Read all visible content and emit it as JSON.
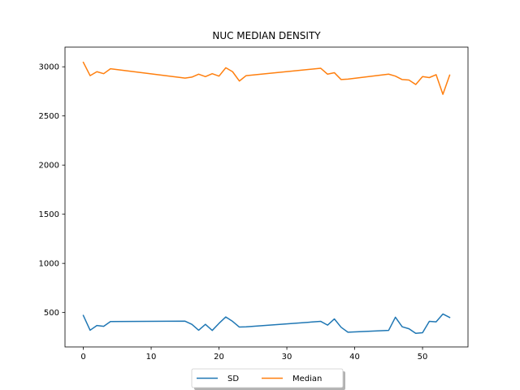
{
  "chart_data": {
    "type": "line",
    "title": "NUC MEDIAN DENSITY",
    "xlabel": "",
    "ylabel": "",
    "xlim": [
      -2.7,
      56.7
    ],
    "ylim": [
      150,
      3200
    ],
    "x_ticks": [
      0,
      10,
      20,
      30,
      40,
      50
    ],
    "y_ticks": [
      500,
      1000,
      1500,
      2000,
      2500,
      3000
    ],
    "grid": false,
    "legend_position": "bottom-center",
    "series": [
      {
        "name": "SD",
        "color": "#1f77b4",
        "points": [
          [
            0,
            470
          ],
          [
            1,
            320
          ],
          [
            2,
            368
          ],
          [
            3,
            360
          ],
          [
            4,
            408
          ],
          [
            15,
            412
          ],
          [
            16,
            380
          ],
          [
            17,
            320
          ],
          [
            18,
            380
          ],
          [
            19,
            318
          ],
          [
            20,
            390
          ],
          [
            21,
            455
          ],
          [
            22,
            410
          ],
          [
            23,
            352
          ],
          [
            24,
            355
          ],
          [
            35,
            410
          ],
          [
            36,
            372
          ],
          [
            37,
            435
          ],
          [
            38,
            350
          ],
          [
            39,
            300
          ],
          [
            45,
            318
          ],
          [
            46,
            452
          ],
          [
            47,
            355
          ],
          [
            48,
            335
          ],
          [
            49,
            288
          ],
          [
            50,
            295
          ],
          [
            51,
            410
          ],
          [
            52,
            405
          ],
          [
            53,
            485
          ],
          [
            54,
            450
          ]
        ]
      },
      {
        "name": "Median",
        "color": "#ff7f0e",
        "points": [
          [
            0,
            3045
          ],
          [
            1,
            2910
          ],
          [
            2,
            2950
          ],
          [
            3,
            2930
          ],
          [
            4,
            2980
          ],
          [
            15,
            2885
          ],
          [
            16,
            2895
          ],
          [
            17,
            2925
          ],
          [
            18,
            2900
          ],
          [
            19,
            2930
          ],
          [
            20,
            2905
          ],
          [
            21,
            2990
          ],
          [
            22,
            2950
          ],
          [
            23,
            2855
          ],
          [
            24,
            2910
          ],
          [
            35,
            2985
          ],
          [
            36,
            2925
          ],
          [
            37,
            2940
          ],
          [
            38,
            2870
          ],
          [
            39,
            2875
          ],
          [
            45,
            2925
          ],
          [
            46,
            2905
          ],
          [
            47,
            2870
          ],
          [
            48,
            2865
          ],
          [
            49,
            2820
          ],
          [
            50,
            2900
          ],
          [
            51,
            2890
          ],
          [
            52,
            2920
          ],
          [
            53,
            2720
          ],
          [
            54,
            2915
          ]
        ]
      }
    ]
  }
}
